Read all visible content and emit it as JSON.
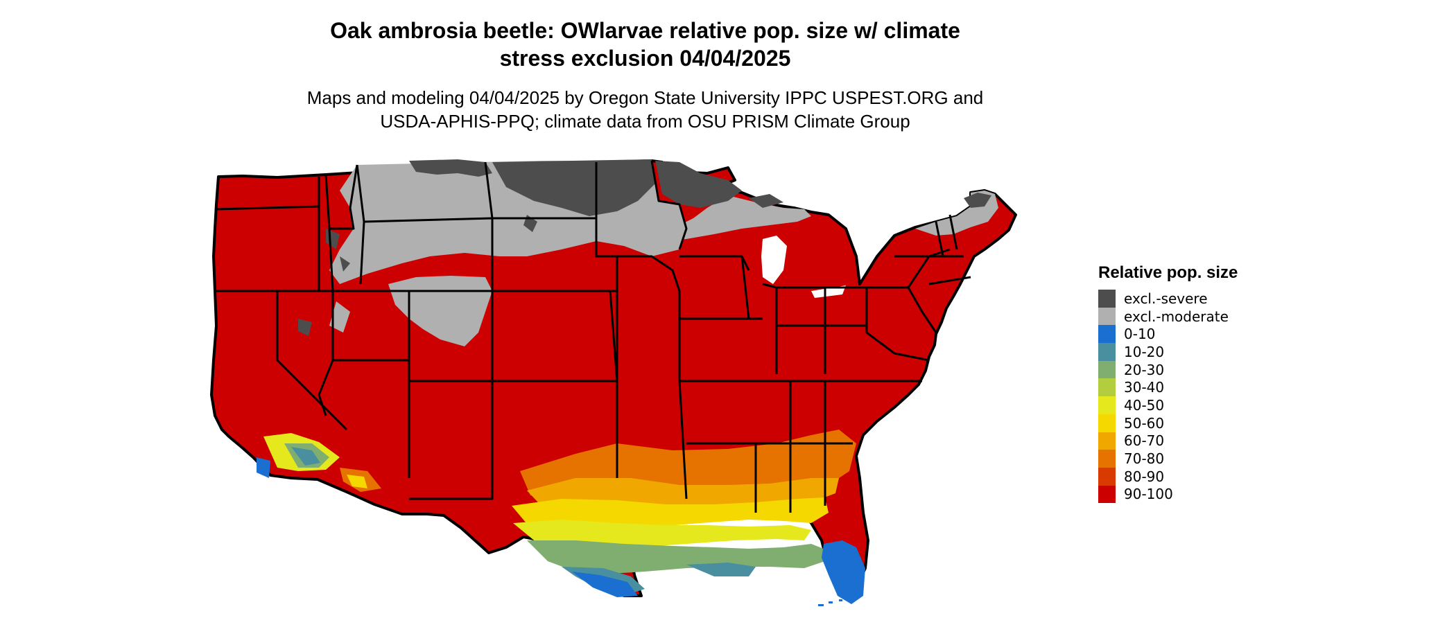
{
  "title_line1": "Oak ambrosia beetle: OWlarvae relative pop. size w/ climate",
  "title_line2": "stress exclusion 04/04/2025",
  "subtitle_line1": "Maps and modeling 04/04/2025 by Oregon State University IPPC USPEST.ORG and",
  "subtitle_line2": "USDA-APHIS-PPQ; climate data from OSU PRISM Climate Group",
  "legend": {
    "title": "Relative pop. size",
    "items": [
      {
        "label": "excl.-severe",
        "color": "#4d4d4d"
      },
      {
        "label": "excl.-moderate",
        "color": "#b0b0b0"
      },
      {
        "label": "0-10",
        "color": "#1b6fd1"
      },
      {
        "label": "10-20",
        "color": "#4a8fa0"
      },
      {
        "label": "20-30",
        "color": "#7fae70"
      },
      {
        "label": "30-40",
        "color": "#b2cd3e"
      },
      {
        "label": "40-50",
        "color": "#e4e81c"
      },
      {
        "label": "50-60",
        "color": "#f5d800"
      },
      {
        "label": "60-70",
        "color": "#f0a800"
      },
      {
        "label": "70-80",
        "color": "#e67300"
      },
      {
        "label": "80-90",
        "color": "#d93a00"
      },
      {
        "label": "90-100",
        "color": "#cc0000"
      }
    ]
  }
}
